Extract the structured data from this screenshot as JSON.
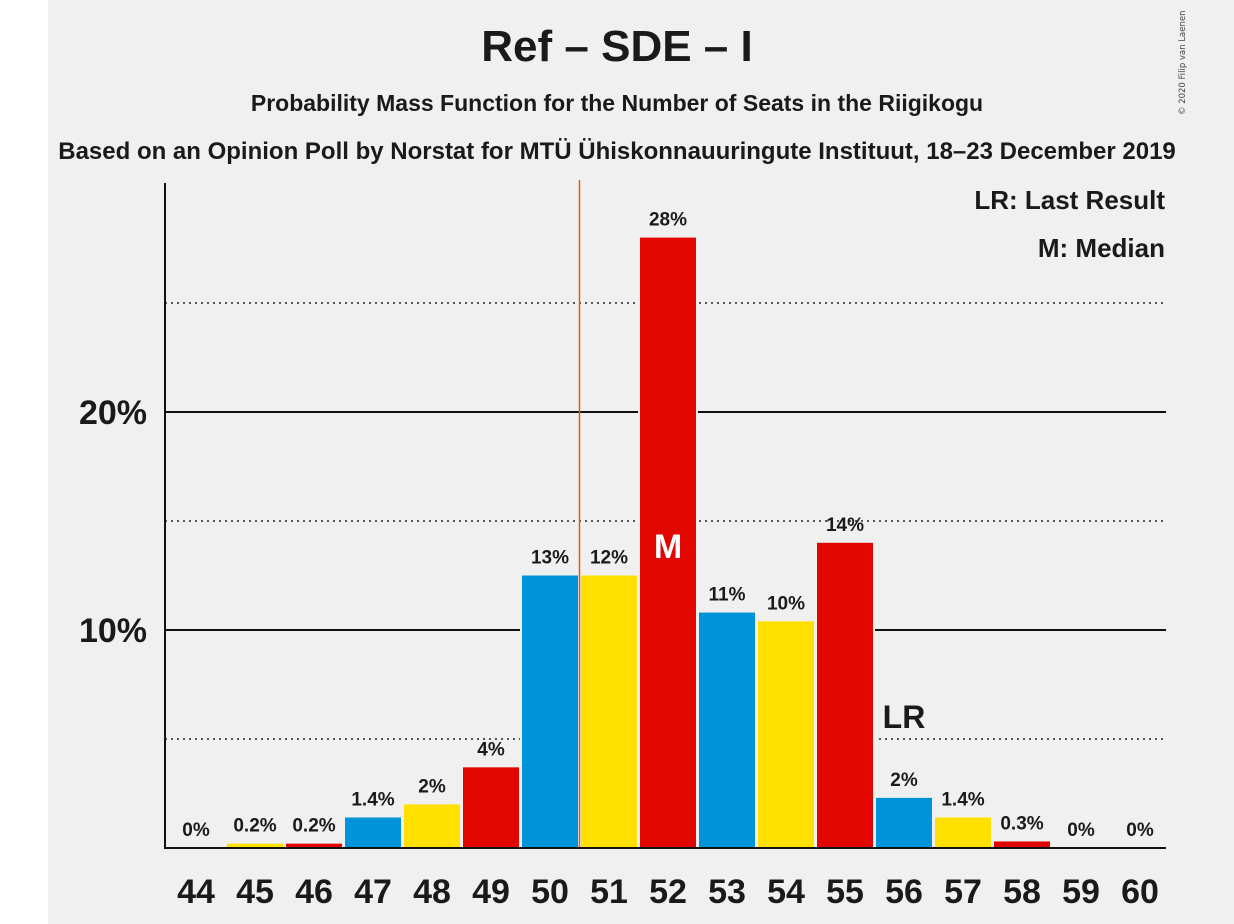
{
  "title": "Ref – SDE – I",
  "subtitle": "Probability Mass Function for the Number of Seats in the Riigikogu",
  "subtitle2": "Based on an Opinion Poll by Norstat for MTÜ Ühiskonnauuringute Instituut, 18–23 December 2019",
  "copyright": "© 2020 Filip van Laenen",
  "legend": {
    "lr": "LR: Last Result",
    "m": "M: Median"
  },
  "colors": {
    "blue": "#0093d9",
    "yellow": "#ffe000",
    "red": "#e10600",
    "median_line": "#e06000"
  },
  "chart_data": {
    "type": "bar",
    "categories": [
      "44",
      "45",
      "46",
      "47",
      "48",
      "49",
      "50",
      "51",
      "52",
      "53",
      "54",
      "55",
      "56",
      "57",
      "58",
      "59",
      "60"
    ],
    "values": [
      0,
      0.2,
      0.2,
      1.4,
      2.0,
      3.7,
      12.5,
      12.5,
      28.0,
      10.8,
      10.4,
      14.0,
      2.3,
      1.4,
      0.3,
      0,
      0
    ],
    "labels": [
      "0%",
      "0.2%",
      "0.2%",
      "1.4%",
      "2%",
      "4%",
      "13%",
      "12%",
      "28%",
      "11%",
      "10%",
      "14%",
      "2%",
      "1.4%",
      "0.3%",
      "0%",
      "0%"
    ],
    "bar_colors": [
      "blue",
      "yellow",
      "red",
      "blue",
      "yellow",
      "red",
      "blue",
      "yellow",
      "red",
      "blue",
      "yellow",
      "red",
      "blue",
      "yellow",
      "red",
      "blue",
      "yellow"
    ],
    "ylim": [
      0,
      30
    ],
    "yticks": [
      {
        "value": 10,
        "label": "10%"
      },
      {
        "value": 20,
        "label": "20%"
      }
    ],
    "minor_gridlines": [
      5,
      15,
      25
    ],
    "median_seat": "52",
    "median_marker": "M",
    "last_result_seat": "56",
    "last_result_marker": "LR",
    "threshold_line_between": [
      "50",
      "51"
    ],
    "legend_position": "top-right"
  }
}
